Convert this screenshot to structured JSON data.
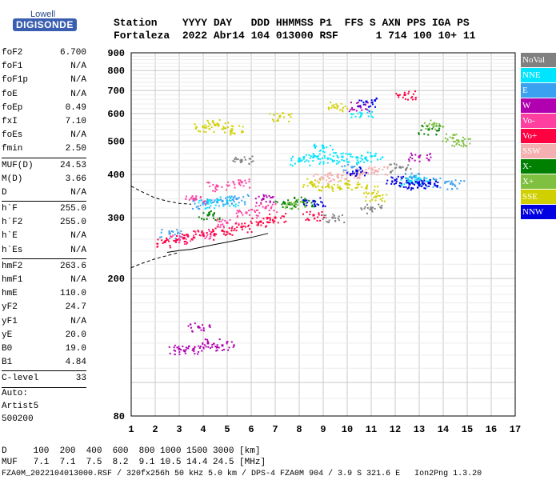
{
  "logo": {
    "top": "Lowell",
    "main": "DIGISONDE"
  },
  "header": {
    "line1": "Station    YYYY DAY   DDD HHMMSS P1  FFS S AXN PPS IGA PS",
    "line2": "Fortaleza  2022 Abr14 104 013000 RSF      1 714 100 10+ 11"
  },
  "params_groups": [
    [
      [
        "foF2",
        "6.700"
      ],
      [
        "foF1",
        "N/A"
      ],
      [
        "foF1p",
        "N/A"
      ],
      [
        "foE",
        "N/A"
      ],
      [
        "foEp",
        "0.49"
      ],
      [
        "fxI",
        "7.10"
      ],
      [
        "foEs",
        "N/A"
      ],
      [
        "fmin",
        "2.50"
      ]
    ],
    [
      [
        "MUF(D)",
        "24.53"
      ],
      [
        "M(D)",
        "3.66"
      ],
      [
        "D",
        "N/A"
      ]
    ],
    [
      [
        "h`F",
        "255.0"
      ],
      [
        "h`F2",
        "255.0"
      ],
      [
        "h`E",
        "N/A"
      ],
      [
        "h`Es",
        "N/A"
      ]
    ],
    [
      [
        "hmF2",
        "263.6"
      ],
      [
        "hmF1",
        "N/A"
      ],
      [
        "hmE",
        "110.0"
      ],
      [
        "yF2",
        "24.7"
      ],
      [
        "yF1",
        "N/A"
      ],
      [
        "yE",
        "20.0"
      ],
      [
        "B0",
        "19.0"
      ],
      [
        "B1",
        "4.84"
      ]
    ],
    [
      [
        "C-level",
        "33"
      ]
    ]
  ],
  "auto": [
    "Auto:",
    "Artist5",
    "500200"
  ],
  "legend": [
    {
      "label": "NoVal",
      "color": "#808080"
    },
    {
      "label": "NNE",
      "color": "#00e5ff"
    },
    {
      "label": "E",
      "color": "#3aa0f0"
    },
    {
      "label": "W",
      "color": "#b000b0"
    },
    {
      "label": "Vo-",
      "color": "#ff40a0"
    },
    {
      "label": "Vo+",
      "color": "#ff0040"
    },
    {
      "label": "SSW",
      "color": "#f4b0b0"
    },
    {
      "label": "X-",
      "color": "#008000"
    },
    {
      "label": "X+",
      "color": "#80c040"
    },
    {
      "label": "SSE",
      "color": "#d0d000"
    },
    {
      "label": "NNW",
      "color": "#0000e0"
    }
  ],
  "chart_data": {
    "type": "scatter",
    "title": "",
    "xlabel": "",
    "ylabel": "",
    "xlim": [
      1,
      17
    ],
    "ylim": [
      80,
      900
    ],
    "yscale": "log",
    "x_ticks": [
      1,
      2,
      3,
      4,
      5,
      6,
      7,
      8,
      9,
      10,
      11,
      12,
      13,
      14,
      15,
      16,
      17
    ],
    "y_ticks": [
      80,
      100,
      200,
      300,
      400,
      500,
      600,
      700,
      800,
      900
    ],
    "y_tick_labels": [
      "80",
      "",
      "200",
      "300",
      "400",
      "500",
      "600",
      "700",
      "800",
      "900"
    ],
    "grid": true,
    "series": [
      {
        "name": "NNE",
        "color": "#00e5ff",
        "points": [
          [
            8.0,
            440
          ],
          [
            8.6,
            450
          ],
          [
            9.2,
            445
          ],
          [
            9.8,
            450
          ],
          [
            10.4,
            448
          ],
          [
            11.0,
            452
          ],
          [
            12.6,
            380
          ],
          [
            13.0,
            390
          ],
          [
            4.2,
            330
          ],
          [
            5.0,
            335
          ],
          [
            9.0,
            480
          ],
          [
            10.6,
            600
          ]
        ]
      },
      {
        "name": "E",
        "color": "#3aa0f0",
        "points": [
          [
            4.0,
            330
          ],
          [
            4.8,
            335
          ],
          [
            5.4,
            340
          ],
          [
            12.8,
            395
          ],
          [
            13.4,
            380
          ],
          [
            14.4,
            375
          ],
          [
            10.2,
            420
          ],
          [
            2.6,
            270
          ]
        ]
      },
      {
        "name": "W",
        "color": "#b000b0",
        "points": [
          [
            3.0,
            125
          ],
          [
            3.6,
            125
          ],
          [
            4.2,
            130
          ],
          [
            4.8,
            128
          ],
          [
            10.5,
            630
          ],
          [
            13.0,
            450
          ],
          [
            6.5,
            340
          ],
          [
            3.8,
            145
          ]
        ]
      },
      {
        "name": "Vo-",
        "color": "#ff40a0",
        "points": [
          [
            3.0,
            260
          ],
          [
            4.0,
            270
          ],
          [
            5.0,
            290
          ],
          [
            5.8,
            310
          ],
          [
            6.6,
            320
          ],
          [
            4.6,
            370
          ],
          [
            5.6,
            380
          ],
          [
            3.6,
            340
          ]
        ]
      },
      {
        "name": "Vo+",
        "color": "#ff0040",
        "points": [
          [
            2.4,
            255
          ],
          [
            3.2,
            262
          ],
          [
            4.0,
            268
          ],
          [
            4.8,
            275
          ],
          [
            5.6,
            282
          ],
          [
            6.4,
            292
          ],
          [
            7.0,
            300
          ],
          [
            8.6,
            305
          ],
          [
            12.4,
            680
          ]
        ]
      },
      {
        "name": "SSW",
        "color": "#f4b0b0",
        "points": [
          [
            9.0,
            390
          ],
          [
            9.6,
            395
          ],
          [
            10.2,
            400
          ],
          [
            10.8,
            405
          ],
          [
            11.2,
            410
          ]
        ]
      },
      {
        "name": "X-",
        "color": "#008000",
        "points": [
          [
            4.2,
            305
          ],
          [
            7.4,
            330
          ],
          [
            8.2,
            335
          ],
          [
            13.4,
            540
          ]
        ]
      },
      {
        "name": "X+",
        "color": "#80c040",
        "points": [
          [
            14.4,
            510
          ],
          [
            14.8,
            500
          ],
          [
            7.8,
            330
          ],
          [
            13.6,
            560
          ]
        ]
      },
      {
        "name": "SSE",
        "color": "#d0d000",
        "points": [
          [
            4.0,
            550
          ],
          [
            4.6,
            560
          ],
          [
            5.2,
            540
          ],
          [
            7.2,
            590
          ],
          [
            8.5,
            380
          ],
          [
            9.2,
            370
          ],
          [
            10.0,
            375
          ],
          [
            10.8,
            365
          ],
          [
            9.6,
            630
          ],
          [
            11.2,
            345
          ]
        ]
      },
      {
        "name": "NNW",
        "color": "#0000e0",
        "points": [
          [
            12.6,
            375
          ],
          [
            13.0,
            372
          ],
          [
            13.4,
            378
          ],
          [
            10.4,
            410
          ],
          [
            10.8,
            650
          ],
          [
            8.6,
            335
          ],
          [
            12.0,
            385
          ]
        ]
      },
      {
        "name": "NoVal",
        "color": "#808080",
        "points": [
          [
            9.4,
            300
          ],
          [
            11.0,
            320
          ],
          [
            12.2,
            420
          ],
          [
            5.6,
            440
          ]
        ]
      }
    ],
    "profile_curves": [
      {
        "style": "solid",
        "points": [
          [
            2.5,
            238
          ],
          [
            3.0,
            241
          ],
          [
            3.5,
            243
          ],
          [
            4.0,
            247
          ],
          [
            4.5,
            251
          ],
          [
            5.0,
            255
          ],
          [
            5.5,
            259
          ],
          [
            6.0,
            263
          ],
          [
            6.5,
            268
          ],
          [
            6.7,
            270
          ]
        ]
      },
      {
        "style": "dashed",
        "points": [
          [
            1.0,
            215
          ],
          [
            1.5,
            222
          ],
          [
            2.0,
            228
          ],
          [
            2.5,
            233
          ],
          [
            3.0,
            238
          ]
        ]
      },
      {
        "style": "dashed",
        "points": [
          [
            1.0,
            370
          ],
          [
            1.5,
            355
          ],
          [
            2.0,
            342
          ],
          [
            2.5,
            335
          ],
          [
            3.0,
            330
          ],
          [
            3.5,
            328
          ]
        ]
      }
    ]
  },
  "footer": {
    "d_line": "D     100  200  400  600  800 1000 1500 3000 [km]",
    "muf_line": "MUF   7.1  7.1  7.5  8.2  9.1 10.5 14.4 24.5 [MHz]",
    "info_line": "FZA0M_2022104013000.RSF / 320fx256h 50 kHz 5.0 km / DPS-4 FZA0M 904 / 3.9 S 321.6 E   Ion2Png 1.3.20"
  }
}
